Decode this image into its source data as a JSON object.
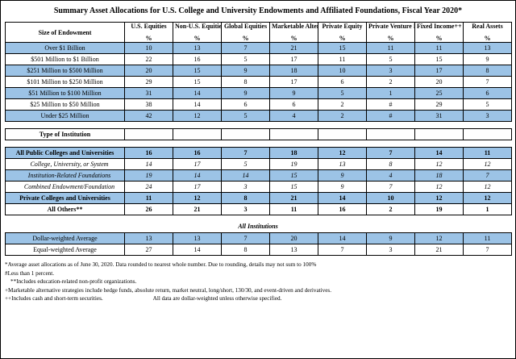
{
  "title": "Summary Asset Allocations for U.S. College and University Endowments and Affiliated Foundations, Fiscal Year 2020*",
  "table": {
    "col_headers": {
      "size_label": "Size of Endowment",
      "columns": [
        {
          "name": "U.S. Equities",
          "pct": "%"
        },
        {
          "name": "Non-U.S. Equities",
          "pct": "%"
        },
        {
          "name": "Global Equities",
          "pct": "%"
        },
        {
          "name": "Marketable Alternatives+",
          "pct": "%"
        },
        {
          "name": "Private Equity",
          "pct": "%"
        },
        {
          "name": "Private Venture Equity",
          "pct": "%"
        },
        {
          "name": "Fixed Income++",
          "pct": "%"
        },
        {
          "name": "Real Assets",
          "pct": "%"
        }
      ]
    },
    "size_rows": [
      {
        "label": "Over $1 Billion",
        "style": "blue",
        "values": [
          "10",
          "13",
          "7",
          "21",
          "15",
          "11",
          "11",
          "13"
        ]
      },
      {
        "label": "$501 Million to $1 Billion",
        "style": "",
        "values": [
          "22",
          "16",
          "5",
          "17",
          "11",
          "5",
          "15",
          "9"
        ]
      },
      {
        "label": "$251 Million to $500 Million",
        "style": "blue",
        "values": [
          "20",
          "15",
          "9",
          "18",
          "10",
          "3",
          "17",
          "8"
        ]
      },
      {
        "label": "$101 Million to $250 Million",
        "style": "",
        "values": [
          "29",
          "15",
          "8",
          "17",
          "6",
          "2",
          "20",
          "7"
        ]
      },
      {
        "label": "$51 Million to $100 Million",
        "style": "blue",
        "values": [
          "31",
          "14",
          "9",
          "9",
          "5",
          "1",
          "25",
          "6"
        ]
      },
      {
        "label": "$25 Million to $50 Million",
        "style": "",
        "values": [
          "38",
          "14",
          "6",
          "6",
          "2",
          "#",
          "29",
          "5"
        ]
      },
      {
        "label": "Under $25 Million",
        "style": "blue",
        "values": [
          "42",
          "12",
          "5",
          "4",
          "2",
          "#",
          "31",
          "3"
        ]
      }
    ],
    "type_header": "Type of Institution",
    "type_rows": [
      {
        "label": "All Public Colleges and Universities",
        "style": "blue bold",
        "values": [
          "16",
          "16",
          "7",
          "18",
          "12",
          "7",
          "14",
          "11"
        ]
      },
      {
        "label": "College, University, or System",
        "style": "italic indent",
        "values": [
          "14",
          "17",
          "5",
          "19",
          "13",
          "8",
          "12",
          "12"
        ]
      },
      {
        "label": "Institution-Related Foundations",
        "style": "blue italic indent",
        "values": [
          "19",
          "14",
          "14",
          "15",
          "9",
          "4",
          "18",
          "7"
        ]
      },
      {
        "label": "Combined Endowment/Foundation",
        "style": "italic indent",
        "values": [
          "24",
          "17",
          "3",
          "15",
          "9",
          "7",
          "12",
          "12"
        ]
      },
      {
        "label": "Private Colleges and Universities",
        "style": "blue bold",
        "values": [
          "11",
          "12",
          "8",
          "21",
          "14",
          "10",
          "12",
          "12"
        ]
      },
      {
        "label": "All Others**",
        "style": "bold",
        "values": [
          "26",
          "21",
          "3",
          "11",
          "16",
          "2",
          "19",
          "1"
        ]
      }
    ],
    "all_institutions_label": "All Institutions",
    "average_rows": [
      {
        "label": "Dollar-weighted Average",
        "style": "blue",
        "values": [
          "13",
          "13",
          "7",
          "20",
          "14",
          "9",
          "12",
          "11"
        ]
      },
      {
        "label": "Equal-weighted Average",
        "style": "",
        "values": [
          "27",
          "14",
          "8",
          "13",
          "7",
          "3",
          "21",
          "7"
        ]
      }
    ]
  },
  "footnotes": [
    "*Average asset allocations as of June 30, 2020. Data rounded to nearest whole number. Due to rounding, details may not sum to 100%",
    "#Less than 1 percent.",
    "**Includes education-related non-profit organizations.",
    "+Marketable alternative strategies include hedge funds, absolute return, market neutral, long/short, 130/30, and event-driven and derivatives.",
    "++Includes cash and short-term securities.",
    "All data are dollar-weighted unless otherwise specified."
  ]
}
